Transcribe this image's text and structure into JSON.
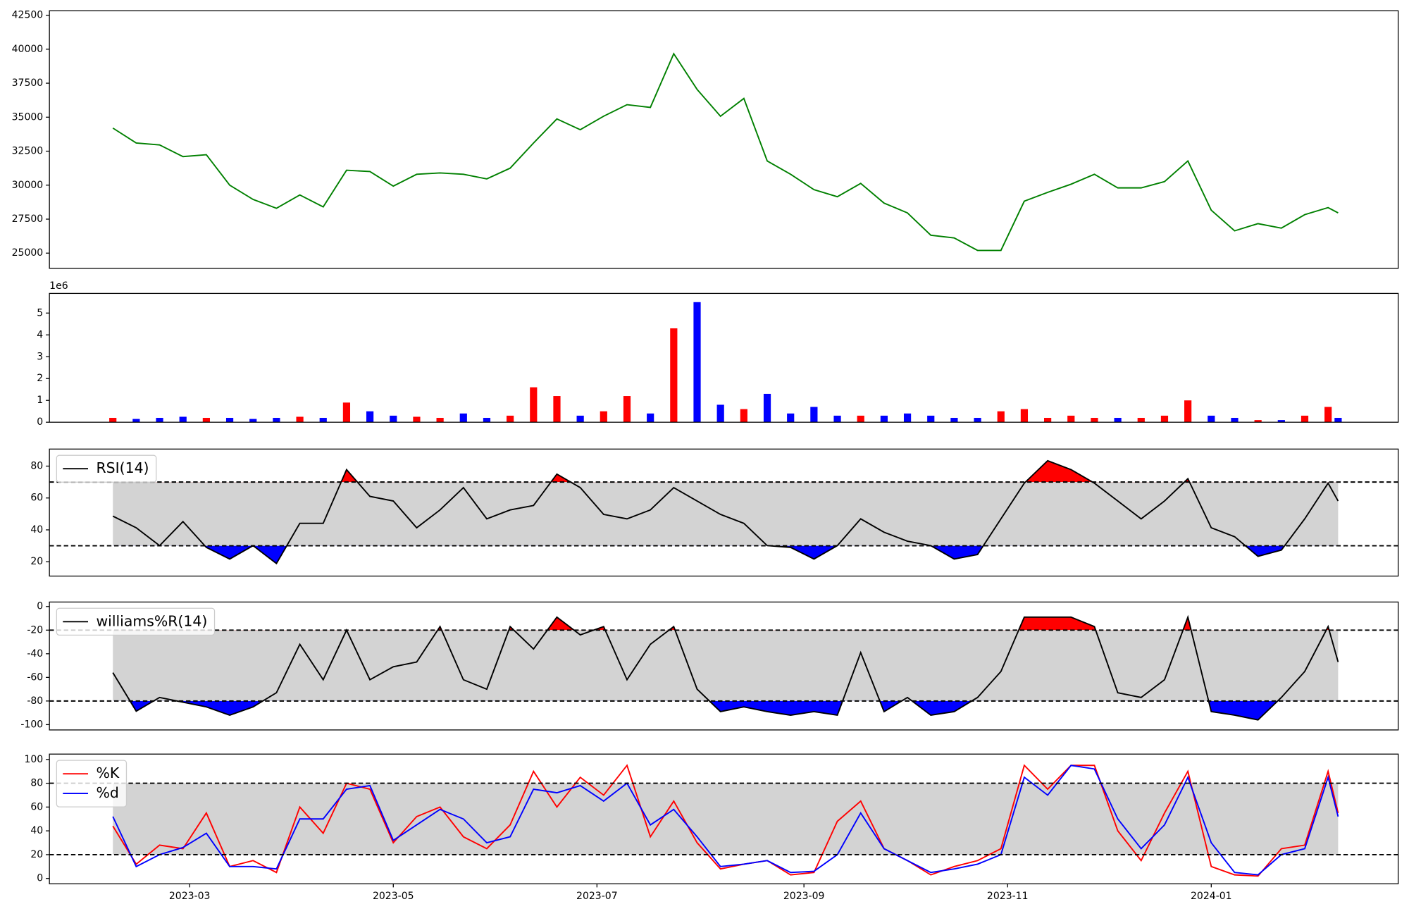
{
  "chart_data": [
    {
      "type": "line",
      "color": "green",
      "x": [
        "2023-02-06",
        "2023-02-13",
        "2023-02-20",
        "2023-02-27",
        "2023-03-06",
        "2023-03-13",
        "2023-03-20",
        "2023-03-27",
        "2023-04-03",
        "2023-04-10",
        "2023-04-17",
        "2023-04-24",
        "2023-05-01",
        "2023-05-08",
        "2023-05-15",
        "2023-05-22",
        "2023-05-29",
        "2023-06-05",
        "2023-06-12",
        "2023-06-19",
        "2023-06-26",
        "2023-07-03",
        "2023-07-10",
        "2023-07-17",
        "2023-07-24",
        "2023-07-31",
        "2023-08-07",
        "2023-08-14",
        "2023-08-21",
        "2023-08-28",
        "2023-09-04",
        "2023-09-11",
        "2023-09-18",
        "2023-09-25",
        "2023-10-02",
        "2023-10-09",
        "2023-10-16",
        "2023-10-23",
        "2023-10-30",
        "2023-11-06",
        "2023-11-13",
        "2023-11-20",
        "2023-11-27",
        "2023-12-04",
        "2023-12-11",
        "2023-12-18",
        "2023-12-25",
        "2024-01-01",
        "2024-01-08",
        "2024-01-15",
        "2024-01-22",
        "2024-01-29",
        "2024-02-05",
        "2024-02-08"
      ],
      "values": [
        34200,
        33100,
        32960,
        32100,
        32240,
        30000,
        28950,
        28300,
        29280,
        28400,
        31100,
        31000,
        29930,
        30800,
        30900,
        30800,
        30460,
        31250,
        33100,
        34870,
        34080,
        35070,
        35920,
        35720,
        39670,
        37040,
        35070,
        36380,
        31780,
        30800,
        29670,
        29150,
        30130,
        28680,
        27960,
        26320,
        26120,
        25200,
        25200,
        28820,
        29470,
        30070,
        30800,
        29800,
        29800,
        30260,
        31780,
        28160,
        26640,
        27170,
        26840,
        27830,
        28350,
        27960
      ],
      "xlim": [
        "2023-01-18",
        "2024-02-26"
      ],
      "ylim": [
        23880,
        42830
      ],
      "yticks": [
        25000,
        27500,
        30000,
        32500,
        35000,
        37500,
        40000,
        42500
      ]
    },
    {
      "type": "bar",
      "up_color": "red",
      "down_color": "blue",
      "offset_label": "1e6",
      "x": [
        "2023-02-06",
        "2023-02-13",
        "2023-02-20",
        "2023-02-27",
        "2023-03-06",
        "2023-03-13",
        "2023-03-20",
        "2023-03-27",
        "2023-04-03",
        "2023-04-10",
        "2023-04-17",
        "2023-04-24",
        "2023-05-01",
        "2023-05-08",
        "2023-05-15",
        "2023-05-22",
        "2023-05-29",
        "2023-06-05",
        "2023-06-12",
        "2023-06-19",
        "2023-06-26",
        "2023-07-03",
        "2023-07-10",
        "2023-07-17",
        "2023-07-24",
        "2023-07-31",
        "2023-08-07",
        "2023-08-14",
        "2023-08-21",
        "2023-08-28",
        "2023-09-04",
        "2023-09-11",
        "2023-09-18",
        "2023-09-25",
        "2023-10-02",
        "2023-10-09",
        "2023-10-16",
        "2023-10-23",
        "2023-10-30",
        "2023-11-06",
        "2023-11-13",
        "2023-11-20",
        "2023-11-27",
        "2023-12-04",
        "2023-12-11",
        "2023-12-18",
        "2023-12-25",
        "2024-01-01",
        "2024-01-08",
        "2024-01-15",
        "2024-01-22",
        "2024-01-29",
        "2024-02-05",
        "2024-02-08"
      ],
      "values": [
        0.2,
        0.15,
        0.2,
        0.25,
        0.2,
        0.2,
        0.15,
        0.2,
        0.25,
        0.2,
        0.9,
        0.5,
        0.3,
        0.25,
        0.2,
        0.4,
        0.2,
        0.3,
        1.6,
        1.2,
        0.3,
        0.5,
        1.2,
        0.4,
        4.3,
        5.5,
        0.8,
        0.6,
        1.3,
        0.4,
        0.7,
        0.3,
        0.3,
        0.3,
        0.4,
        0.3,
        0.2,
        0.2,
        0.5,
        0.6,
        0.2,
        0.3,
        0.2,
        0.2,
        0.2,
        0.3,
        1.0,
        0.3,
        0.2,
        0.1,
        0.1,
        0.3,
        0.7,
        0.2
      ],
      "xlim": [
        "2023-01-18",
        "2024-02-26"
      ],
      "ylim": [
        0,
        5.9
      ],
      "yticks": [
        0,
        1,
        2,
        3,
        4,
        5
      ]
    },
    {
      "type": "line",
      "band": [
        30,
        70
      ],
      "band_fill": "lightgray",
      "above_color": "red",
      "below_color": "blue",
      "x": [
        "2023-02-06",
        "2023-02-13",
        "2023-02-20",
        "2023-02-27",
        "2023-03-06",
        "2023-03-13",
        "2023-03-20",
        "2023-03-27",
        "2023-04-03",
        "2023-04-10",
        "2023-04-17",
        "2023-04-24",
        "2023-05-01",
        "2023-05-08",
        "2023-05-15",
        "2023-05-22",
        "2023-05-29",
        "2023-06-05",
        "2023-06-12",
        "2023-06-19",
        "2023-06-26",
        "2023-07-03",
        "2023-07-10",
        "2023-07-17",
        "2023-07-24",
        "2023-07-31",
        "2023-08-07",
        "2023-08-14",
        "2023-08-21",
        "2023-08-28",
        "2023-09-04",
        "2023-09-11",
        "2023-09-18",
        "2023-09-25",
        "2023-10-02",
        "2023-10-09",
        "2023-10-16",
        "2023-10-23",
        "2023-10-30",
        "2023-11-06",
        "2023-11-13",
        "2023-11-20",
        "2023-11-27",
        "2023-12-04",
        "2023-12-11",
        "2023-12-18",
        "2023-12-25",
        "2024-01-01",
        "2024-01-08",
        "2024-01-15",
        "2024-01-22",
        "2024-01-29",
        "2024-02-05",
        "2024-02-08"
      ],
      "series": [
        {
          "name": "RSI(14)",
          "color": "black",
          "values": [
            48.6,
            41.3,
            30.1,
            45.2,
            29,
            21.7,
            30.1,
            18.9,
            44.1,
            44.1,
            77.8,
            61,
            58.1,
            41.3,
            52.5,
            66.5,
            46.9,
            52.5,
            55.3,
            75,
            66.5,
            49.7,
            46.9,
            52.5,
            66.5,
            58.1,
            49.7,
            44.1,
            30.1,
            29,
            21.7,
            30.1,
            46.9,
            38.5,
            32.9,
            30.1,
            21.7,
            24.5,
            46.9,
            69.3,
            83.4,
            77.8,
            69.3,
            58.1,
            46.9,
            58.1,
            72.1,
            41.3,
            35.7,
            23.4,
            27.3,
            46.9,
            69.3,
            58.1
          ]
        }
      ],
      "xlim": [
        "2023-01-18",
        "2024-02-26"
      ],
      "ylim": [
        11,
        90.7
      ],
      "yticks": [
        20,
        40,
        60,
        80
      ]
    },
    {
      "type": "line",
      "band": [
        -80,
        -20
      ],
      "band_fill": "lightgray",
      "above_color": "red",
      "below_color": "blue",
      "x": [
        "2023-02-06",
        "2023-02-13",
        "2023-02-20",
        "2023-02-27",
        "2023-03-06",
        "2023-03-13",
        "2023-03-20",
        "2023-03-27",
        "2023-04-03",
        "2023-04-10",
        "2023-04-17",
        "2023-04-24",
        "2023-05-01",
        "2023-05-08",
        "2023-05-15",
        "2023-05-22",
        "2023-05-29",
        "2023-06-05",
        "2023-06-12",
        "2023-06-19",
        "2023-06-26",
        "2023-07-03",
        "2023-07-10",
        "2023-07-17",
        "2023-07-24",
        "2023-07-31",
        "2023-08-07",
        "2023-08-14",
        "2023-08-21",
        "2023-08-28",
        "2023-09-04",
        "2023-09-11",
        "2023-09-18",
        "2023-09-25",
        "2023-10-02",
        "2023-10-09",
        "2023-10-16",
        "2023-10-23",
        "2023-10-30",
        "2023-11-06",
        "2023-11-13",
        "2023-11-20",
        "2023-11-27",
        "2023-12-04",
        "2023-12-11",
        "2023-12-18",
        "2023-12-25",
        "2024-01-01",
        "2024-01-08",
        "2024-01-15",
        "2024-01-22",
        "2024-01-29",
        "2024-02-05",
        "2024-02-08"
      ],
      "series": [
        {
          "name": "williams%R(14)",
          "color": "black",
          "values": [
            -56,
            -88.6,
            -77,
            -81,
            -85,
            -92,
            -85,
            -73,
            -32,
            -62,
            -20,
            -62,
            -51,
            -47,
            -17,
            -62,
            -70,
            -17,
            -36,
            -9,
            -24,
            -17,
            -62,
            -32,
            -17,
            -70,
            -89,
            -85,
            -89,
            -92,
            -89,
            -92,
            -39,
            -89,
            -77,
            -92,
            -89,
            -77,
            -55,
            -9,
            -9,
            -9,
            -17,
            -73,
            -77,
            -62,
            -9,
            -89,
            -92,
            -96,
            -77,
            -55,
            -17,
            -47
          ]
        }
      ],
      "xlim": [
        "2023-01-18",
        "2024-02-26"
      ],
      "ylim": [
        -104.5,
        3.8
      ],
      "yticks": [
        -100,
        -80,
        -60,
        -40,
        -20,
        0
      ]
    },
    {
      "type": "line",
      "band": [
        20,
        80
      ],
      "band_fill": "lightgray",
      "x": [
        "2023-02-06",
        "2023-02-13",
        "2023-02-20",
        "2023-02-27",
        "2023-03-06",
        "2023-03-13",
        "2023-03-20",
        "2023-03-27",
        "2023-04-03",
        "2023-04-10",
        "2023-04-17",
        "2023-04-24",
        "2023-05-01",
        "2023-05-08",
        "2023-05-15",
        "2023-05-22",
        "2023-05-29",
        "2023-06-05",
        "2023-06-12",
        "2023-06-19",
        "2023-06-26",
        "2023-07-03",
        "2023-07-10",
        "2023-07-17",
        "2023-07-24",
        "2023-07-31",
        "2023-08-07",
        "2023-08-14",
        "2023-08-21",
        "2023-08-28",
        "2023-09-04",
        "2023-09-11",
        "2023-09-18",
        "2023-09-25",
        "2023-10-02",
        "2023-10-09",
        "2023-10-16",
        "2023-10-23",
        "2023-10-30",
        "2023-11-06",
        "2023-11-13",
        "2023-11-20",
        "2023-11-27",
        "2023-12-04",
        "2023-12-11",
        "2023-12-18",
        "2023-12-25",
        "2024-01-01",
        "2024-01-08",
        "2024-01-15",
        "2024-01-22",
        "2024-01-29",
        "2024-02-05",
        "2024-02-08"
      ],
      "series": [
        {
          "name": "%K",
          "color": "red",
          "values": [
            44,
            12,
            28,
            25,
            55,
            10,
            15,
            5,
            60,
            38,
            80,
            75,
            30,
            52,
            60,
            35,
            25,
            45,
            90,
            60,
            85,
            70,
            95,
            35,
            65,
            30,
            8,
            12,
            15,
            3,
            5,
            48,
            65,
            25,
            15,
            3,
            10,
            15,
            25,
            95,
            75,
            95,
            95,
            40,
            15,
            55,
            90,
            10,
            3,
            2,
            25,
            28,
            90,
            55
          ]
        },
        {
          "name": "%d",
          "color": "blue",
          "values": [
            52,
            10,
            20,
            26,
            38,
            10,
            10,
            8,
            50,
            50,
            75,
            78,
            32,
            45,
            58,
            50,
            30,
            35,
            75,
            72,
            78,
            65,
            80,
            45,
            58,
            35,
            10,
            12,
            15,
            5,
            6,
            20,
            55,
            25,
            15,
            5,
            8,
            12,
            20,
            85,
            70,
            95,
            92,
            50,
            25,
            45,
            85,
            30,
            5,
            3,
            20,
            25,
            85,
            52
          ]
        }
      ],
      "xlim": [
        "2023-01-18",
        "2024-02-26"
      ],
      "ylim": [
        -4.5,
        104.5
      ],
      "yticks": [
        0,
        20,
        40,
        60,
        80,
        100
      ],
      "xticks": [
        {
          "value": "2023-03-01",
          "label": "2023-03"
        },
        {
          "value": "2023-05-01",
          "label": "2023-05"
        },
        {
          "value": "2023-07-01",
          "label": "2023-07"
        },
        {
          "value": "2023-09-01",
          "label": "2023-09"
        },
        {
          "value": "2023-11-01",
          "label": "2023-11"
        },
        {
          "value": "2024-01-01",
          "label": "2024-01"
        }
      ]
    }
  ]
}
